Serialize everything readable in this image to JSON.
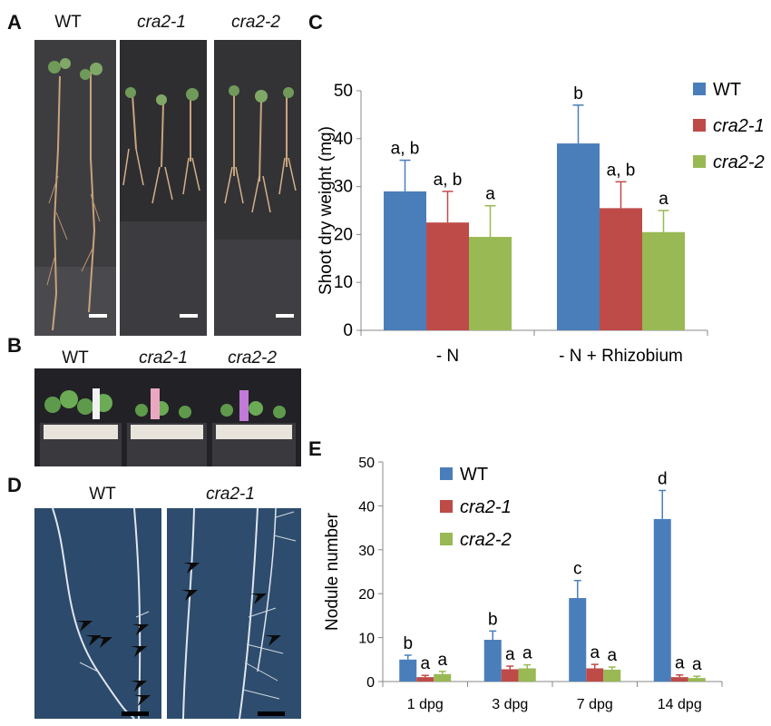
{
  "panels": {
    "a": {
      "letter": "A",
      "labels": [
        "WT",
        "cra2-1",
        "cra2-2"
      ]
    },
    "b": {
      "letter": "B",
      "labels": [
        "WT",
        "cra2-1",
        "cra2-2"
      ]
    },
    "c": {
      "letter": "C"
    },
    "d": {
      "letter": "D",
      "labels": [
        "WT",
        "cra2-1"
      ]
    },
    "e": {
      "letter": "E"
    }
  },
  "colors": {
    "WT": "#4a7ebb",
    "cra2-1": "#be4b48",
    "cra2-2": "#98b954"
  },
  "chart_data": [
    {
      "type": "bar",
      "ylabel": "Shoot dry weight (mg)",
      "xlabel": "",
      "ylim": [
        0,
        50
      ],
      "yticks": [
        0,
        10,
        20,
        30,
        40,
        50
      ],
      "legend_position": "top-right",
      "categories": [
        "- N",
        "- N + Rhizobium"
      ],
      "series": [
        {
          "name": "WT",
          "values": [
            29,
            39
          ],
          "errors": [
            6.5,
            8
          ],
          "sig": [
            "a, b",
            "b"
          ]
        },
        {
          "name": "cra2-1",
          "values": [
            22.5,
            25.5
          ],
          "errors": [
            6.5,
            5.5
          ],
          "sig": [
            "a, b",
            "a, b"
          ]
        },
        {
          "name": "cra2-2",
          "values": [
            19.5,
            20.5
          ],
          "errors": [
            6.5,
            4.5
          ],
          "sig": [
            "a",
            "a"
          ]
        }
      ]
    },
    {
      "type": "bar",
      "ylabel": "Nodule number",
      "xlabel": "",
      "ylim": [
        0,
        50
      ],
      "yticks": [
        0,
        10,
        20,
        30,
        40,
        50
      ],
      "legend_position": "top-left",
      "categories": [
        "1 dpg",
        "3 dpg",
        "7 dpg",
        "14 dpg"
      ],
      "series": [
        {
          "name": "WT",
          "values": [
            5,
            9.5,
            19,
            37
          ],
          "errors": [
            1,
            2,
            4,
            6.5
          ],
          "sig": [
            "b",
            "b",
            "c",
            "d"
          ]
        },
        {
          "name": "cra2-1",
          "values": [
            1,
            2.8,
            3,
            1
          ],
          "errors": [
            0.4,
            0.7,
            0.9,
            0.5
          ],
          "sig": [
            "a",
            "a",
            "a",
            "a"
          ]
        },
        {
          "name": "cra2-2",
          "values": [
            1.7,
            3,
            2.7,
            0.8
          ],
          "errors": [
            0.6,
            0.8,
            0.6,
            0.4
          ],
          "sig": [
            "a",
            "a",
            "a",
            "a"
          ]
        }
      ]
    }
  ]
}
